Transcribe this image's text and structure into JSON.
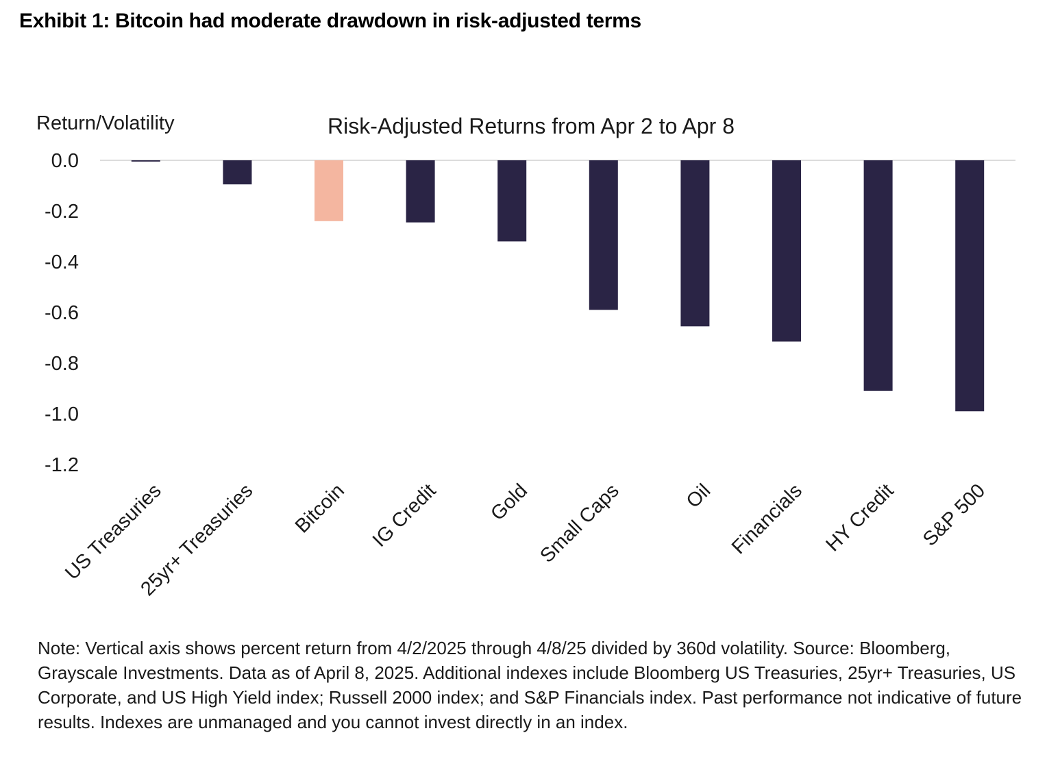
{
  "exhibit_title": "Exhibit 1: Bitcoin had moderate drawdown in risk-adjusted terms",
  "chart_data": {
    "type": "bar",
    "title": "Risk-Adjusted Returns from Apr 2 to Apr 8",
    "ylabel": "Return/Volatility",
    "xlabel": "",
    "ylim": [
      -1.2,
      0.0
    ],
    "yticks": [
      0.0,
      -0.2,
      -0.4,
      -0.6,
      -0.8,
      -1.0,
      -1.2
    ],
    "ytick_labels": [
      "0.0",
      "-0.2",
      "-0.4",
      "-0.6",
      "-0.8",
      "-1.0",
      "-1.2"
    ],
    "grid": false,
    "categories": [
      "US Treasuries",
      "25yr+ Treasuries",
      "Bitcoin",
      "IG Credit",
      "Gold",
      "Small Caps",
      "Oil",
      "Financials",
      "HY Credit",
      "S&P 500"
    ],
    "values": [
      -0.005,
      -0.095,
      -0.24,
      -0.245,
      -0.32,
      -0.59,
      -0.655,
      -0.715,
      -0.91,
      -0.99
    ],
    "colors": [
      "#2a2445",
      "#2a2445",
      "#f4b6a0",
      "#2a2445",
      "#2a2445",
      "#2a2445",
      "#2a2445",
      "#2a2445",
      "#2a2445",
      "#2a2445"
    ]
  },
  "note": "Note: Vertical axis shows percent return from 4/2/2025 through 4/8/25 divided by 360d volatility. Source: Bloomberg, Grayscale Investments. Data as of April 8, 2025. Additional indexes include Bloomberg US Treasuries, 25yr+ Treasuries, US Corporate, and US High Yield index; Russell 2000 index; and S&P Financials index. Past performance not indicative of future results. Indexes are unmanaged and you cannot invest directly in an index."
}
